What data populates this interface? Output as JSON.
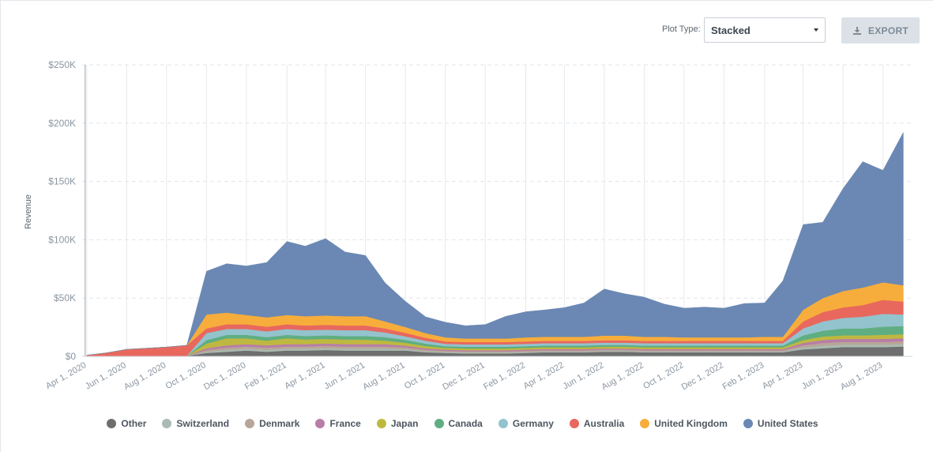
{
  "controls": {
    "plot_type_label": "Plot Type:",
    "plot_type_value": "Stacked",
    "export_label": "EXPORT",
    "export_icon": "download-icon"
  },
  "chart_data": {
    "type": "area",
    "stacked": true,
    "ylabel": "Revenue",
    "xlabel": "",
    "ylim": [
      0,
      250000
    ],
    "yticks": [
      0,
      50000,
      100000,
      150000,
      200000,
      250000
    ],
    "ytick_labels": [
      "$0",
      "$50K",
      "$100K",
      "$150K",
      "$200K",
      "$250K"
    ],
    "grid": true,
    "legend_position": "bottom",
    "xlim": [
      "2020-03-25",
      "2023-09-15"
    ],
    "xtick_labels": [
      "Apr 1, 2020",
      "Jun 1, 2020",
      "Aug 1, 2020",
      "Oct 1, 2020",
      "Dec 1, 2020",
      "Feb 1, 2021",
      "Apr 1, 2021",
      "Jun 1, 2021",
      "Aug 1, 2021",
      "Oct 1, 2021",
      "Dec 1, 2021",
      "Feb 1, 2022",
      "Apr 1, 2022",
      "Jun 1, 2022",
      "Aug 1, 2022",
      "Oct 1, 2022",
      "Dec 1, 2022",
      "Feb 1, 2023",
      "Apr 1, 2023",
      "Jun 1, 2023",
      "Aug 1, 2023"
    ],
    "xtick_dates": [
      "2020-04-01",
      "2020-06-01",
      "2020-08-01",
      "2020-10-01",
      "2020-12-01",
      "2021-02-01",
      "2021-04-01",
      "2021-06-01",
      "2021-08-01",
      "2021-10-01",
      "2021-12-01",
      "2022-02-01",
      "2022-04-01",
      "2022-06-01",
      "2022-08-01",
      "2022-10-01",
      "2022-12-01",
      "2023-02-01",
      "2023-04-01",
      "2023-06-01",
      "2023-08-01"
    ],
    "x": [
      "2020-04-01",
      "2020-05-01",
      "2020-06-01",
      "2020-07-01",
      "2020-08-01",
      "2020-09-01",
      "2020-10-01",
      "2020-11-01",
      "2020-12-01",
      "2021-01-01",
      "2021-02-01",
      "2021-03-01",
      "2021-04-01",
      "2021-05-01",
      "2021-06-01",
      "2021-07-01",
      "2021-08-01",
      "2021-09-01",
      "2021-10-01",
      "2021-11-01",
      "2021-12-01",
      "2022-01-01",
      "2022-02-01",
      "2022-03-01",
      "2022-04-01",
      "2022-05-01",
      "2022-06-01",
      "2022-07-01",
      "2022-08-01",
      "2022-09-01",
      "2022-10-01",
      "2022-11-01",
      "2022-12-01",
      "2023-01-01",
      "2023-02-01",
      "2023-03-01",
      "2023-04-01",
      "2023-05-01",
      "2023-06-01",
      "2023-07-01",
      "2023-08-01",
      "2023-09-01"
    ],
    "series": [
      {
        "name": "Other",
        "color": "#6e6e6e",
        "values": [
          0,
          0,
          0,
          0,
          0,
          500,
          3000,
          4000,
          5000,
          4000,
          5000,
          5000,
          5500,
          5000,
          5000,
          5000,
          5000,
          3500,
          3000,
          2500,
          2500,
          2500,
          3000,
          3500,
          3500,
          3500,
          4000,
          4000,
          3500,
          3500,
          3500,
          3500,
          3500,
          3500,
          3500,
          3500,
          6000,
          7000,
          8000,
          8000,
          8000,
          8500
        ]
      },
      {
        "name": "Switzerland",
        "color": "#a9bbb2",
        "values": [
          0,
          0,
          0,
          0,
          0,
          0,
          1000,
          1500,
          1500,
          1500,
          1500,
          1500,
          1500,
          1500,
          1500,
          1500,
          1200,
          1000,
          800,
          800,
          800,
          800,
          800,
          800,
          800,
          800,
          800,
          800,
          800,
          800,
          800,
          800,
          800,
          800,
          800,
          800,
          1500,
          2000,
          2000,
          2000,
          2000,
          2000
        ]
      },
      {
        "name": "Denmark",
        "color": "#b8a698",
        "values": [
          0,
          0,
          0,
          0,
          0,
          0,
          1500,
          2000,
          2000,
          2000,
          2000,
          2000,
          2000,
          2000,
          2000,
          2000,
          1500,
          1200,
          1000,
          1000,
          1000,
          1000,
          1000,
          1000,
          1000,
          1000,
          1000,
          1000,
          1000,
          1000,
          1000,
          1000,
          1000,
          1000,
          1000,
          1000,
          2000,
          2500,
          2500,
          2500,
          2500,
          2500
        ]
      },
      {
        "name": "France",
        "color": "#b87da8",
        "values": [
          0,
          0,
          0,
          0,
          0,
          0,
          1500,
          2000,
          2000,
          2000,
          2000,
          2000,
          2000,
          2000,
          2000,
          2000,
          1500,
          1200,
          1000,
          1000,
          1000,
          1000,
          1000,
          1000,
          1000,
          1000,
          1000,
          1000,
          1000,
          1000,
          1000,
          1000,
          1000,
          1000,
          1000,
          1000,
          2000,
          2500,
          2500,
          2500,
          2500,
          2500
        ]
      },
      {
        "name": "Japan",
        "color": "#bfb840",
        "values": [
          0,
          0,
          0,
          0,
          0,
          0,
          4000,
          6000,
          5000,
          4000,
          5000,
          4000,
          4000,
          4000,
          4000,
          3000,
          2500,
          2000,
          1500,
          1500,
          1500,
          1500,
          1500,
          1500,
          1500,
          1500,
          1500,
          1500,
          1500,
          1500,
          1500,
          1500,
          1500,
          1500,
          1500,
          1500,
          2500,
          3000,
          3000,
          3000,
          3500,
          3500
        ]
      },
      {
        "name": "Canada",
        "color": "#5fae82",
        "values": [
          0,
          0,
          0,
          0,
          0,
          0,
          3000,
          3000,
          3000,
          3000,
          3000,
          3000,
          3000,
          3000,
          3000,
          3000,
          2500,
          2000,
          1500,
          1500,
          1500,
          1500,
          1500,
          1500,
          1500,
          1500,
          1500,
          1500,
          1500,
          1500,
          1500,
          1500,
          1500,
          1500,
          1500,
          1500,
          4000,
          5000,
          6000,
          6000,
          7000,
          7000
        ]
      },
      {
        "name": "Germany",
        "color": "#93c3cd",
        "values": [
          0,
          0,
          0,
          0,
          0,
          0,
          6000,
          5000,
          5000,
          5000,
          5000,
          5000,
          5000,
          5000,
          5000,
          4000,
          3000,
          2500,
          2000,
          2000,
          2000,
          2000,
          2000,
          2000,
          2000,
          2000,
          2000,
          2000,
          2000,
          2000,
          2000,
          2000,
          2000,
          2000,
          2000,
          2000,
          6000,
          8000,
          9000,
          10000,
          11000,
          10000
        ]
      },
      {
        "name": "Australia",
        "color": "#e8685e",
        "values": [
          1000,
          3000,
          6000,
          7000,
          8000,
          9000,
          4000,
          4000,
          4000,
          4000,
          4000,
          4000,
          4000,
          4000,
          4000,
          3500,
          3000,
          2500,
          2000,
          2000,
          2000,
          2000,
          2000,
          2000,
          2000,
          2000,
          2000,
          2000,
          2000,
          2000,
          2000,
          2000,
          2000,
          2000,
          2000,
          2000,
          6000,
          8000,
          9000,
          10000,
          12000,
          11000
        ]
      },
      {
        "name": "United Kingdom",
        "color": "#f7ad3b",
        "values": [
          0,
          0,
          0,
          0,
          0,
          0,
          12000,
          10000,
          8000,
          8000,
          8000,
          8000,
          8000,
          8000,
          8000,
          6000,
          5000,
          4000,
          3500,
          3000,
          3000,
          3000,
          3500,
          3500,
          3500,
          3500,
          4000,
          4000,
          3500,
          3500,
          3000,
          3000,
          3000,
          3000,
          3500,
          3500,
          10000,
          12000,
          14000,
          15000,
          15000,
          14000
        ]
      },
      {
        "name": "United States",
        "color": "#6a88b3",
        "values": [
          0,
          0,
          0,
          0,
          0,
          0,
          37000,
          42000,
          42000,
          47000,
          63000,
          60000,
          66000,
          55000,
          52000,
          33000,
          22000,
          14000,
          13000,
          11000,
          12000,
          19000,
          22000,
          23000,
          25000,
          29000,
          40000,
          36000,
          34000,
          28000,
          25000,
          26000,
          25000,
          29000,
          29000,
          48000,
          73000,
          65000,
          88000,
          108000,
          96000,
          131000
        ]
      }
    ]
  }
}
